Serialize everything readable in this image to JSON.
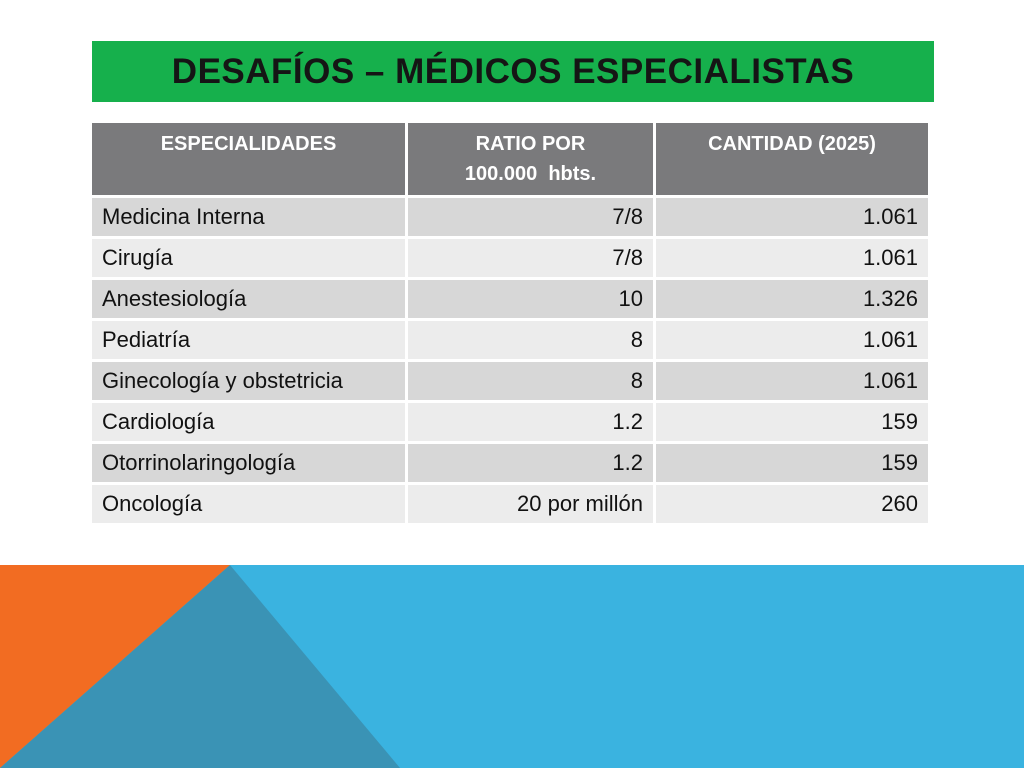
{
  "slide": {
    "title": "DESAFÍOS – MÉDICOS ESPECIALISTAS"
  },
  "table": {
    "headers": {
      "specialty": "ESPECIALIDADES",
      "ratio_line1": "RATIO POR",
      "ratio_line2": "100.000  hbts.",
      "quantity": "CANTIDAD (2025)"
    },
    "rows": [
      {
        "specialty": "Medicina Interna",
        "ratio": "7/8",
        "quantity": "1.061"
      },
      {
        "specialty": "Cirugía",
        "ratio": "7/8",
        "quantity": "1.061"
      },
      {
        "specialty": "Anestesiología",
        "ratio": "10",
        "quantity": "1.326"
      },
      {
        "specialty": "Pediatría",
        "ratio": "8",
        "quantity": "1.061"
      },
      {
        "specialty": "Ginecología y obstetricia",
        "ratio": "8",
        "quantity": "1.061"
      },
      {
        "specialty": "Cardiología",
        "ratio": "1.2",
        "quantity": "159"
      },
      {
        "specialty": "Otorrinolaringología",
        "ratio": "1.2",
        "quantity": "159"
      },
      {
        "specialty": "Oncología",
        "ratio": "20 por millón",
        "quantity": "260"
      }
    ]
  },
  "theme": {
    "title_bg": "#16b04c",
    "header_bg": "#7a7a7c",
    "row_odd_bg": "#d7d7d7",
    "row_even_bg": "#ececec",
    "deco_blue": "#3ab3e0",
    "deco_orange": "#f26c22",
    "deco_teal": "#3a93b5"
  }
}
